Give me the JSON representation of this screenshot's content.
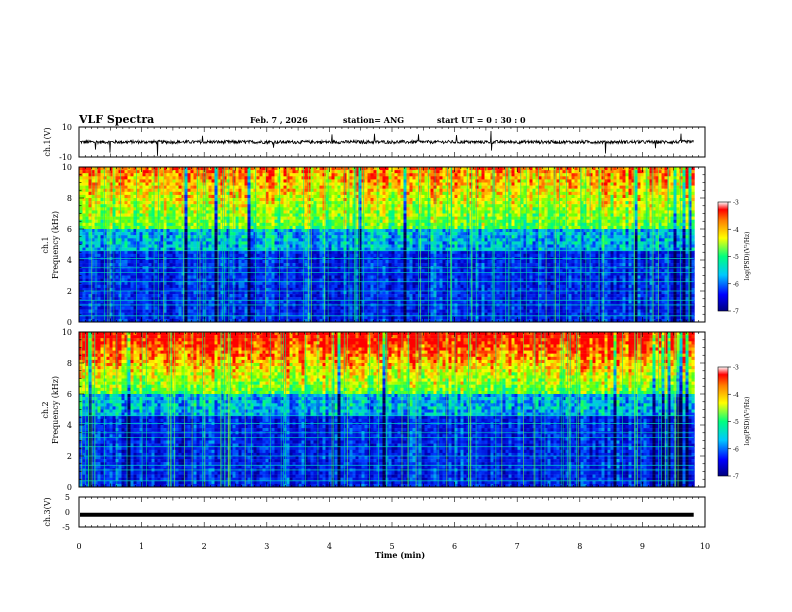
{
  "header": {
    "title": "VLF Spectra",
    "date": "Feb. 7 , 2026",
    "station": "station= ANG",
    "start": "start  UT =   0 : 30 : 0"
  },
  "chart_data": {
    "type": "heatmap",
    "x_axis": {
      "label": "Time (min)",
      "range": [
        0,
        10
      ],
      "ticks": [
        "0",
        "1",
        "2",
        "3",
        "4",
        "5",
        "6",
        "7",
        "8",
        "9",
        "10"
      ],
      "data_end": 9.82
    },
    "panels": [
      {
        "id": "ch1-waveform",
        "kind": "waveform",
        "ylabel": "ch.1(V)",
        "ylim": [
          -10,
          10
        ],
        "yticks": [
          "10",
          "-10"
        ],
        "baseline": 0
      },
      {
        "id": "ch1-spectrogram",
        "kind": "spectrogram",
        "ylabel_top": "ch.1",
        "ylabel": "Frequency (kHz)",
        "ylim": [
          0,
          10
        ],
        "yticks": [
          "0",
          "2",
          "4",
          "6",
          "8",
          "10"
        ],
        "colorbar": {
          "label": "log(PSD)(V²/Hz)",
          "range": [
            -7,
            -3
          ],
          "ticks": [
            "-3",
            "-4",
            "-5",
            "-6",
            "-7"
          ]
        }
      },
      {
        "id": "ch2-spectrogram",
        "kind": "spectrogram",
        "ylabel_top": "ch.2",
        "ylabel": "Frequency (kHz)",
        "ylim": [
          0,
          10
        ],
        "yticks": [
          "0",
          "2",
          "4",
          "6",
          "8",
          "10"
        ],
        "colorbar": {
          "label": "log(PSD)(V²/Hz)",
          "range": [
            -7,
            -3
          ],
          "ticks": [
            "-3",
            "-4",
            "-5",
            "-6",
            "-7"
          ]
        }
      },
      {
        "id": "ch3-waveform",
        "kind": "waveform",
        "ylabel": "ch.3(V)",
        "ylim": [
          -5,
          5
        ],
        "yticks": [
          "5",
          "0",
          "-5"
        ],
        "baseline": -0.9
      }
    ],
    "colors": {
      "low": "#00007f",
      "mid": "#00ff7f",
      "high": "#ff0000"
    }
  }
}
